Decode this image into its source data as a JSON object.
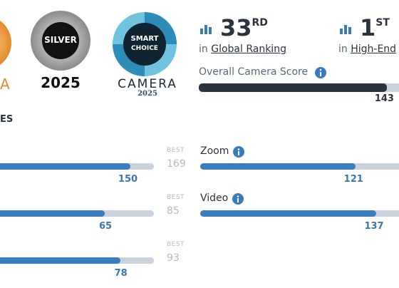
{
  "badges": [
    {
      "text": "A"
    },
    {
      "label": "SILVER",
      "year": "2025"
    },
    {
      "line1": "SMART",
      "line2": "CHOICE",
      "name": "CAMERA",
      "year": "2025"
    }
  ],
  "rankings": [
    {
      "rank": "33",
      "suffix": "RD",
      "prefix": "in",
      "link": "Global Ranking"
    },
    {
      "rank": "1",
      "suffix": "ST",
      "prefix": "in",
      "link": "High-End"
    }
  ],
  "overall": {
    "label": "Overall Camera Score",
    "value": 143
  },
  "section_title": "ES",
  "left_scores": [
    {
      "value": 150,
      "best_label": "BEST",
      "best": 169
    },
    {
      "value": 65,
      "best_label": "BEST",
      "best": 85
    },
    {
      "value": 78,
      "best_label": "BEST",
      "best": 93
    }
  ],
  "right_scores": [
    {
      "name": "Zoom",
      "value": 121
    },
    {
      "name": "Video",
      "value": 137
    }
  ]
}
